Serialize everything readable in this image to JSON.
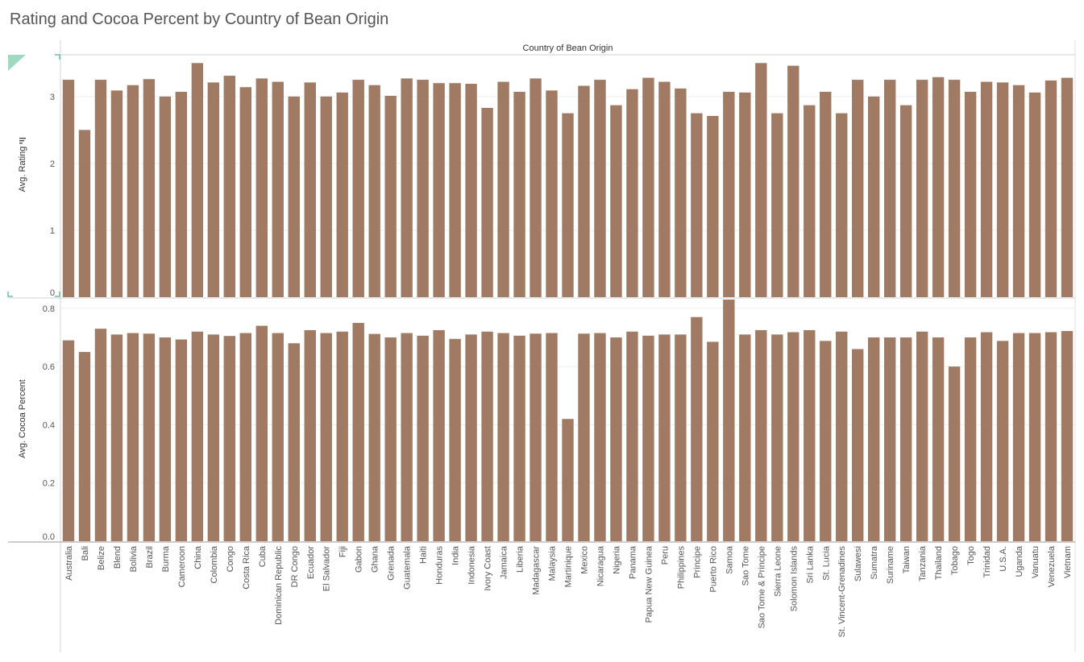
{
  "chart_data": {
    "type": "bar",
    "title": "Rating and Cocoa Percent by Country of Bean Origin",
    "column_header": "Country of Bean Origin",
    "bar_color": "#a07a62",
    "categories": [
      "Australia",
      "Bali",
      "Belize",
      "Blend",
      "Bolivia",
      "Brazil",
      "Burma",
      "Cameroon",
      "China",
      "Colombia",
      "Congo",
      "Costa Rica",
      "Cuba",
      "Dominican Republic",
      "DR Congo",
      "Ecuador",
      "El Salvador",
      "Fiji",
      "Gabon",
      "Ghana",
      "Grenada",
      "Guatemala",
      "Haiti",
      "Honduras",
      "India",
      "Indonesia",
      "Ivory Coast",
      "Jamaica",
      "Liberia",
      "Madagascar",
      "Malaysia",
      "Martinique",
      "Mexico",
      "Nicaragua",
      "Nigeria",
      "Panama",
      "Papua New Guinea",
      "Peru",
      "Philippines",
      "Principe",
      "Puerto Rico",
      "Samoa",
      "Sao Tome",
      "Sao Tome & Principe",
      "Sierra Leone",
      "Solomon Islands",
      "Sri Lanka",
      "St. Lucia",
      "St. Vincent-Grenadines",
      "Sulawesi",
      "Sumatra",
      "Suriname",
      "Taiwan",
      "Tanzania",
      "Thailand",
      "Tobago",
      "Togo",
      "Trinidad",
      "U.S.A.",
      "Uganda",
      "Vanuatu",
      "Venezuela",
      "Vietnam"
    ],
    "series": [
      {
        "name": "Avg. Rating",
        "ylabel": "Avg. Rating",
        "ylim": [
          0,
          3.6
        ],
        "ticks": [
          "0",
          "1",
          "2",
          "3"
        ],
        "values": [
          3.25,
          2.5,
          3.25,
          3.09,
          3.17,
          3.26,
          3.0,
          3.07,
          3.5,
          3.21,
          3.31,
          3.14,
          3.27,
          3.22,
          3.0,
          3.21,
          3.0,
          3.06,
          3.25,
          3.17,
          3.01,
          3.27,
          3.25,
          3.2,
          3.2,
          3.19,
          2.83,
          3.22,
          3.07,
          3.27,
          3.09,
          2.75,
          3.16,
          3.25,
          2.87,
          3.11,
          3.28,
          3.22,
          3.12,
          2.75,
          2.71,
          3.07,
          3.06,
          3.5,
          2.75,
          3.46,
          2.87,
          3.07,
          2.75,
          3.25,
          3.0,
          3.25,
          2.87,
          3.25,
          3.29,
          3.25,
          3.07,
          3.22,
          3.21,
          3.17,
          3.06,
          3.24,
          3.28
        ]
      },
      {
        "name": "Avg. Cocoa Percent",
        "ylabel": "Avg. Cocoa Percent",
        "ylim": [
          0,
          0.83
        ],
        "ticks": [
          "0.0",
          "0.2",
          "0.4",
          "0.6",
          "0.8"
        ],
        "values": [
          0.69,
          0.65,
          0.73,
          0.71,
          0.715,
          0.713,
          0.7,
          0.693,
          0.72,
          0.71,
          0.705,
          0.715,
          0.74,
          0.715,
          0.68,
          0.725,
          0.715,
          0.72,
          0.75,
          0.712,
          0.7,
          0.715,
          0.706,
          0.725,
          0.695,
          0.71,
          0.72,
          0.715,
          0.706,
          0.713,
          0.715,
          0.42,
          0.713,
          0.715,
          0.7,
          0.72,
          0.706,
          0.71,
          0.71,
          0.77,
          0.685,
          0.83,
          0.71,
          0.725,
          0.71,
          0.718,
          0.725,
          0.688,
          0.72,
          0.66,
          0.7,
          0.7,
          0.7,
          0.72,
          0.7,
          0.6,
          0.7,
          0.718,
          0.688,
          0.715,
          0.715,
          0.718,
          0.722
        ]
      }
    ],
    "grid": true,
    "legend": "none"
  }
}
